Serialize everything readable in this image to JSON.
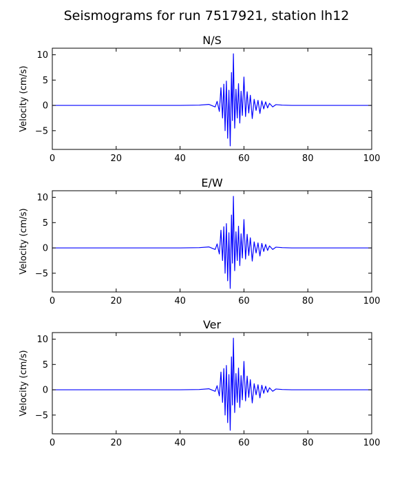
{
  "chart_data": {
    "type": "line",
    "title": "Seismograms for run 7517921, station lh12",
    "xlim": [
      0,
      100
    ],
    "ylim": [
      -8.7,
      11.3
    ],
    "x_ticks": [
      0,
      20,
      40,
      60,
      80,
      100
    ],
    "y_ticks": [
      -5,
      0,
      5,
      10
    ],
    "grid": false,
    "line_color": "#0000ff",
    "panels": [
      {
        "title": "N/S",
        "ylabel": "Velocity (cm/s)",
        "x": [
          0,
          20,
          40,
          46,
          49,
          51,
          51.6,
          52.3,
          52.8,
          53.3,
          53.7,
          54.1,
          54.5,
          54.9,
          55.3,
          55.7,
          56.1,
          56.4,
          56.7,
          57.1,
          57.5,
          57.9,
          58.3,
          58.7,
          59.1,
          59.5,
          60,
          60.5,
          61,
          61.5,
          62,
          62.6,
          63.2,
          63.8,
          64.4,
          65,
          65.6,
          66.2,
          66.8,
          67.4,
          68,
          69,
          70,
          72,
          75,
          80,
          90,
          100
        ],
        "y": [
          0,
          0,
          0,
          0.05,
          0.2,
          -0.3,
          0.8,
          -1.2,
          3.5,
          -2.5,
          4.2,
          -5.0,
          4.8,
          -6.5,
          3.0,
          -8.0,
          6.5,
          -3.0,
          10.2,
          -4.5,
          3.2,
          -2.5,
          4.3,
          -3.5,
          2.8,
          -2.0,
          5.6,
          -2.2,
          2.7,
          -1.5,
          2.0,
          -2.6,
          1.2,
          -1.0,
          1.0,
          -1.6,
          0.9,
          -0.7,
          0.7,
          -0.5,
          0.4,
          -0.3,
          0.15,
          0.05,
          0,
          0,
          0,
          0
        ]
      },
      {
        "title": "E/W",
        "ylabel": "Velocity (cm/s)",
        "x": [
          0,
          20,
          40,
          46,
          49,
          51,
          51.6,
          52.3,
          52.8,
          53.3,
          53.7,
          54.1,
          54.5,
          54.9,
          55.3,
          55.7,
          56.1,
          56.4,
          56.7,
          57.1,
          57.5,
          57.9,
          58.3,
          58.7,
          59.1,
          59.5,
          60,
          60.5,
          61,
          61.5,
          62,
          62.6,
          63.2,
          63.8,
          64.4,
          65,
          65.6,
          66.2,
          66.8,
          67.4,
          68,
          69,
          70,
          72,
          75,
          80,
          90,
          100
        ],
        "y": [
          0,
          0,
          0,
          0.05,
          0.2,
          -0.3,
          0.8,
          -1.2,
          3.5,
          -2.5,
          4.2,
          -5.0,
          4.8,
          -6.5,
          3.0,
          -8.0,
          6.5,
          -3.0,
          10.2,
          -4.5,
          3.2,
          -2.5,
          4.3,
          -3.5,
          2.8,
          -2.0,
          5.6,
          -2.2,
          2.7,
          -1.5,
          2.0,
          -2.6,
          1.2,
          -1.0,
          1.0,
          -1.6,
          0.9,
          -0.7,
          0.7,
          -0.5,
          0.4,
          -0.3,
          0.15,
          0.05,
          0,
          0,
          0,
          0
        ]
      },
      {
        "title": "Ver",
        "ylabel": "Velocity (cm/s)",
        "x": [
          0,
          20,
          40,
          46,
          49,
          51,
          51.6,
          52.3,
          52.8,
          53.3,
          53.7,
          54.1,
          54.5,
          54.9,
          55.3,
          55.7,
          56.1,
          56.4,
          56.7,
          57.1,
          57.5,
          57.9,
          58.3,
          58.7,
          59.1,
          59.5,
          60,
          60.5,
          61,
          61.5,
          62,
          62.6,
          63.2,
          63.8,
          64.4,
          65,
          65.6,
          66.2,
          66.8,
          67.4,
          68,
          69,
          70,
          72,
          75,
          80,
          90,
          100
        ],
        "y": [
          0,
          0,
          0,
          0.05,
          0.2,
          -0.3,
          0.8,
          -1.2,
          3.5,
          -2.5,
          4.2,
          -5.0,
          4.8,
          -6.5,
          3.0,
          -8.0,
          6.5,
          -3.0,
          10.2,
          -4.5,
          3.2,
          -2.5,
          4.3,
          -3.5,
          2.8,
          -2.0,
          5.6,
          -2.2,
          2.7,
          -1.5,
          2.0,
          -2.6,
          1.2,
          -1.0,
          1.0,
          -1.6,
          0.9,
          -0.7,
          0.7,
          -0.5,
          0.4,
          -0.3,
          0.15,
          0.05,
          0,
          0,
          0,
          0
        ]
      }
    ]
  }
}
